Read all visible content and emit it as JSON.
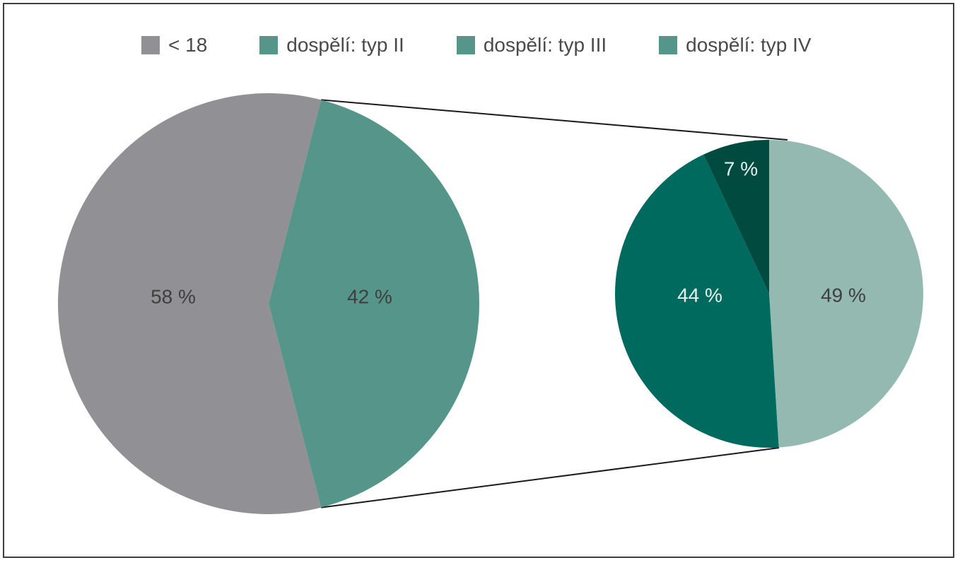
{
  "legend": [
    {
      "label": "< 18",
      "color": "#919195"
    },
    {
      "label": "dospělí: typ II",
      "color": "#55958a"
    },
    {
      "label": "dospělí: typ III",
      "color": "#55958a"
    },
    {
      "label": "dospělí: typ IV",
      "color": "#55958a"
    }
  ],
  "chart_data": [
    {
      "type": "pie",
      "categories": [
        "< 18",
        "dospělí"
      ],
      "values": [
        58,
        42
      ],
      "labels": [
        "58 %",
        "42 %"
      ],
      "colors": [
        "#919195",
        "#55958a"
      ]
    },
    {
      "type": "pie",
      "categories": [
        "dospělí: typ II",
        "dospělí: typ III",
        "dospělí: typ IV"
      ],
      "values": [
        49,
        44,
        7
      ],
      "labels": [
        "49 %",
        "44 %",
        "7 %"
      ],
      "colors": [
        "#93b9b1",
        "#016a5e",
        "#014a40"
      ],
      "label_colors": [
        "#3f3f3f",
        "#e8f0ee",
        "#e8f0ee"
      ]
    }
  ]
}
